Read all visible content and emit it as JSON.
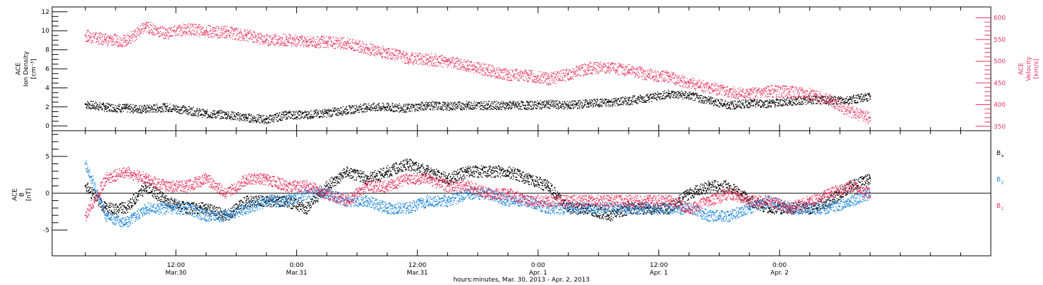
{
  "chart_data": [
    {
      "type": "scatter",
      "panel": "ion-density-velocity",
      "ylabel_left": [
        "ACE",
        "Ion Density",
        "[cm⁻³]"
      ],
      "ylabel_right": [
        "ACE",
        "Velocity",
        "[km/s]"
      ],
      "ylim_left": [
        -0.5,
        12.5
      ],
      "ylim_right": [
        340,
        625
      ],
      "yticks_left": [
        0,
        2,
        4,
        6,
        8,
        10,
        12
      ],
      "yticks_right": [
        350,
        400,
        450,
        500,
        550,
        600
      ],
      "series": [
        {
          "color": "#000000",
          "axis": "left",
          "x": [
            0,
            2,
            4,
            6,
            8,
            10,
            12,
            14,
            16,
            18,
            20,
            22,
            24,
            26,
            28,
            30,
            32,
            34,
            36,
            38,
            40,
            42,
            44,
            46,
            48,
            50,
            52,
            54,
            56,
            58,
            60,
            62,
            64,
            66,
            68,
            70,
            72,
            74,
            76,
            78
          ],
          "y": [
            2.3,
            2.0,
            1.9,
            1.8,
            2.0,
            1.7,
            1.3,
            1.2,
            0.9,
            0.7,
            1.2,
            1.2,
            1.4,
            1.7,
            2.0,
            2.0,
            1.9,
            2.2,
            2.1,
            2.2,
            2.2,
            2.2,
            2.2,
            2.3,
            2.2,
            2.4,
            2.5,
            2.7,
            3.0,
            3.4,
            3.2,
            2.7,
            2.2,
            2.4,
            2.4,
            2.6,
            2.8,
            2.7,
            2.8,
            3.1
          ]
        },
        {
          "color": "#e8335e",
          "axis": "right",
          "x": [
            0,
            2,
            4,
            6,
            8,
            10,
            12,
            14,
            16,
            18,
            20,
            22,
            24,
            26,
            28,
            30,
            32,
            34,
            36,
            38,
            40,
            42,
            44,
            46,
            48,
            50,
            52,
            54,
            56,
            58,
            60,
            62,
            64,
            66,
            68,
            70,
            72,
            74,
            76,
            78
          ],
          "y": [
            560,
            550,
            548,
            580,
            565,
            575,
            570,
            568,
            560,
            550,
            550,
            545,
            545,
            542,
            530,
            520,
            508,
            505,
            500,
            490,
            480,
            470,
            468,
            460,
            470,
            485,
            485,
            480,
            470,
            465,
            450,
            440,
            430,
            425,
            432,
            430,
            425,
            410,
            385,
            370
          ]
        }
      ]
    },
    {
      "type": "scatter",
      "panel": "magnetic-field",
      "ylabel_left": [
        "ACE",
        "B",
        "[nT]"
      ],
      "ylim_left": [
        -8.5,
        8.5
      ],
      "yticks_left": [
        -5,
        0,
        5
      ],
      "zero_line": 0,
      "legend": [
        {
          "label": "B",
          "sub": "x",
          "color": "#000000"
        },
        {
          "label": "B",
          "sub": "y",
          "color": "#1c84d8"
        },
        {
          "label": "B",
          "sub": "z",
          "color": "#e8335e"
        }
      ],
      "series": [
        {
          "color": "#000000",
          "x": [
            0,
            2,
            4,
            6,
            8,
            10,
            12,
            14,
            16,
            18,
            20,
            22,
            24,
            26,
            28,
            30,
            32,
            34,
            36,
            38,
            40,
            42,
            44,
            46,
            48,
            50,
            52,
            54,
            56,
            58,
            60,
            62,
            64,
            66,
            68,
            70,
            72,
            74,
            76,
            78
          ],
          "y": [
            1,
            -2,
            -2,
            1,
            -1,
            -2,
            -2,
            -3,
            -1,
            -1,
            -1,
            -2,
            1,
            3,
            2,
            3,
            4,
            3,
            2,
            3,
            3,
            3,
            2,
            1,
            -2,
            -2,
            -3,
            -2,
            -2,
            -2,
            0,
            1,
            1,
            -1,
            -2,
            -2,
            -2,
            -1,
            1,
            2
          ]
        },
        {
          "color": "#1c84d8",
          "x": [
            0,
            2,
            4,
            6,
            8,
            10,
            12,
            14,
            16,
            18,
            20,
            22,
            24,
            26,
            28,
            30,
            32,
            34,
            36,
            38,
            40,
            42,
            44,
            46,
            48,
            50,
            52,
            54,
            56,
            58,
            60,
            62,
            64,
            66,
            68,
            70,
            72,
            74,
            76,
            78
          ],
          "y": [
            4,
            -3,
            -4,
            -2,
            -2,
            -2,
            -3,
            -3,
            -2,
            -1,
            -1,
            0,
            0,
            -1,
            -1,
            -2,
            -2,
            -1,
            -1,
            0,
            0,
            -1,
            -1,
            -2,
            -2,
            -2,
            -2,
            -2,
            -2,
            -2,
            -2,
            -3,
            -3,
            -2,
            -1,
            -2,
            -2,
            -2,
            -1,
            0
          ]
        },
        {
          "color": "#e8335e",
          "x": [
            0,
            2,
            4,
            6,
            8,
            10,
            12,
            14,
            16,
            18,
            20,
            22,
            24,
            26,
            28,
            30,
            32,
            34,
            36,
            38,
            40,
            42,
            44,
            46,
            48,
            50,
            52,
            54,
            56,
            58,
            60,
            62,
            64,
            66,
            68,
            70,
            72,
            74,
            76,
            78
          ],
          "y": [
            -3,
            2,
            3,
            2,
            1,
            1,
            2,
            0,
            2,
            2,
            1,
            1,
            0,
            -1,
            1,
            1,
            2,
            2,
            1,
            1,
            0,
            0,
            -1,
            -1,
            -1,
            -1,
            -1,
            -1,
            -1,
            -1,
            -2,
            -1,
            0,
            -1,
            -1,
            -2,
            -1,
            0,
            1,
            0
          ]
        }
      ]
    }
  ],
  "x_axis": {
    "xlim": [
      -3.3,
      90
    ],
    "ticks": [
      {
        "x": 9,
        "time": "12:00",
        "date": "Mar.30"
      },
      {
        "x": 21,
        "time": "0:00",
        "date": "Mar.31"
      },
      {
        "x": 33,
        "time": "12:00",
        "date": "Mar.31"
      },
      {
        "x": 45,
        "time": "0:00",
        "date": "Apr. 1"
      },
      {
        "x": 57,
        "time": "12:00",
        "date": "Apr. 1"
      },
      {
        "x": 69,
        "time": "0:00",
        "date": "Apr. 2"
      }
    ],
    "caption": "hours:minutes, Mar. 30, 2013 - Apr.  2, 2013"
  }
}
